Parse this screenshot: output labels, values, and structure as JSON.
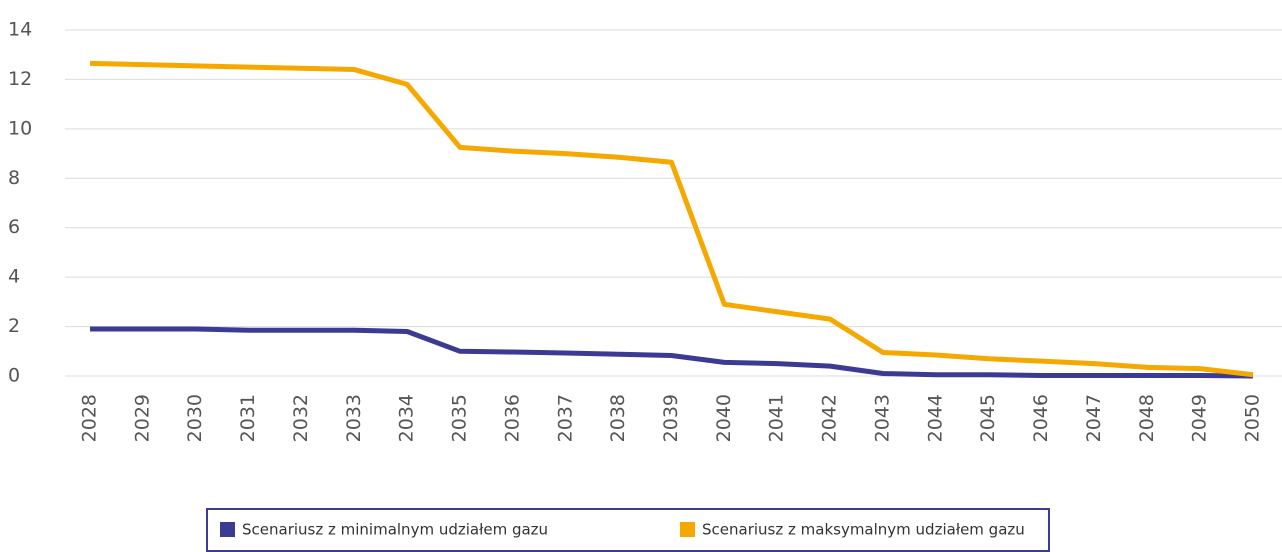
{
  "chart_data": {
    "type": "line",
    "categories": [
      "2028",
      "2029",
      "2030",
      "2031",
      "2032",
      "2033",
      "2034",
      "2035",
      "2036",
      "2037",
      "2038",
      "2039",
      "2040",
      "2041",
      "2042",
      "2043",
      "2044",
      "2045",
      "2046",
      "2047",
      "2048",
      "2049",
      "2050"
    ],
    "series": [
      {
        "name": "Scenariusz z minimalnym udziałem gazu",
        "color": "#3b3b94",
        "values": [
          1.9,
          1.9,
          1.9,
          1.85,
          1.85,
          1.85,
          1.8,
          1.0,
          0.97,
          0.93,
          0.88,
          0.83,
          0.55,
          0.5,
          0.4,
          0.1,
          0.05,
          0.05,
          0.02,
          0.02,
          0.02,
          0.02,
          0
        ]
      },
      {
        "name": "Scenariusz z maksymalnym udziałem gazu",
        "color": "#f5a800",
        "values": [
          12.65,
          12.6,
          12.55,
          12.5,
          12.45,
          12.4,
          11.8,
          9.25,
          9.1,
          9.0,
          8.85,
          8.65,
          2.9,
          2.6,
          2.3,
          0.95,
          0.85,
          0.7,
          0.6,
          0.5,
          0.35,
          0.3,
          0.05
        ]
      }
    ],
    "ylim": [
      0,
      14
    ],
    "yticks": [
      0,
      2,
      4,
      6,
      8,
      10,
      12,
      14
    ],
    "grid": true,
    "legend": "bottom"
  }
}
